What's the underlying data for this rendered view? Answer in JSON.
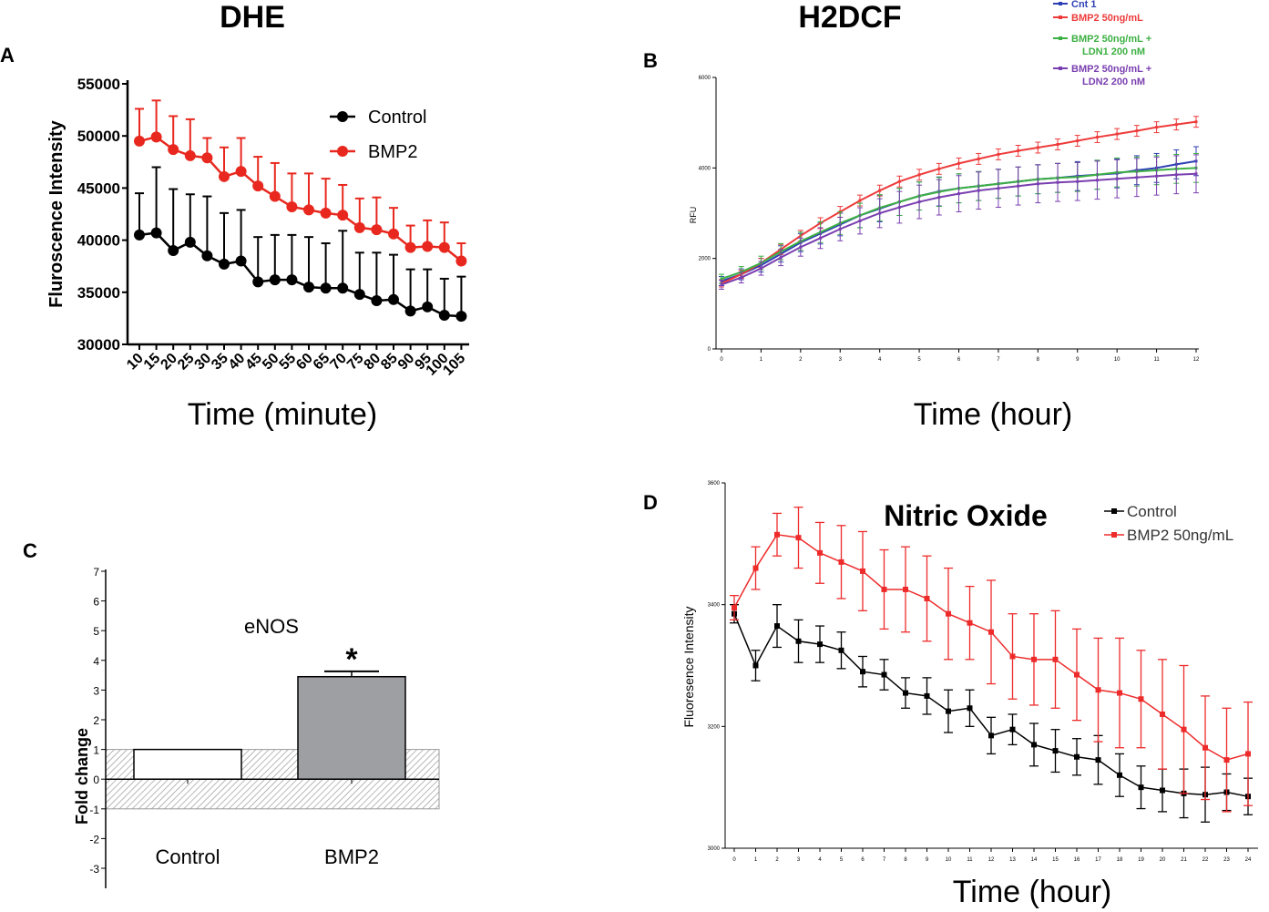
{
  "chart_data": [
    {
      "panel": "A",
      "type": "line",
      "title": "DHE",
      "xlabel": "Time (minute)",
      "ylabel": "Fluroscence Intensity",
      "ylim": [
        30000,
        55000
      ],
      "yticks": [
        30000,
        35000,
        40000,
        45000,
        50000,
        55000
      ],
      "categories": [
        "10",
        "15",
        "20",
        "25",
        "30",
        "35",
        "40",
        "45",
        "50",
        "55",
        "60",
        "65",
        "70",
        "75",
        "80",
        "85",
        "90",
        "95",
        "100",
        "105"
      ],
      "legend_position": "top-right",
      "series": [
        {
          "name": "Control",
          "color": "#000000",
          "values": [
            40500,
            40700,
            39000,
            39800,
            38500,
            37700,
            38000,
            36000,
            36200,
            36200,
            35500,
            35400,
            35400,
            34800,
            34200,
            34300,
            33200,
            33600,
            32800,
            32700
          ],
          "errors": [
            4000,
            6300,
            5900,
            4600,
            5700,
            4900,
            4900,
            4300,
            4300,
            4300,
            4800,
            4300,
            5500,
            4000,
            4600,
            4300,
            4000,
            3600,
            3500,
            3800
          ]
        },
        {
          "name": "BMP2",
          "color": "#e8281e",
          "values": [
            49500,
            49900,
            48700,
            48100,
            47900,
            46100,
            46600,
            45200,
            44200,
            43200,
            42900,
            42600,
            42400,
            41200,
            41000,
            40600,
            39300,
            39400,
            39300,
            38000
          ],
          "errors": [
            3100,
            3500,
            3200,
            3500,
            1900,
            2800,
            3200,
            2800,
            3200,
            3200,
            3500,
            3300,
            2900,
            2800,
            3100,
            2500,
            2100,
            2500,
            2400,
            1700
          ]
        }
      ]
    },
    {
      "panel": "B",
      "type": "line",
      "title": "H2DCF",
      "xlabel": "Time (hour)",
      "ylabel": "RFU",
      "ylim": [
        0,
        6000
      ],
      "yticks": [
        0,
        2000,
        4000,
        6000
      ],
      "xlim": [
        0,
        12
      ],
      "xticks": [
        "0",
        "1",
        "2",
        "3",
        "4",
        "5",
        "6",
        "7",
        "8",
        "9",
        "10",
        "11",
        "12"
      ],
      "legend_position": "top",
      "x": [
        0,
        0.5,
        1,
        1.5,
        2,
        2.5,
        3,
        3.5,
        4,
        4.5,
        5,
        5.5,
        6,
        6.5,
        7,
        7.5,
        8,
        8.5,
        9,
        9.5,
        10,
        10.5,
        11,
        11.5,
        12
      ],
      "series": [
        {
          "name": "Cnt 1",
          "color": "#2d3fb5",
          "values": [
            1500,
            1650,
            1850,
            2100,
            2350,
            2550,
            2750,
            2950,
            3100,
            3250,
            3380,
            3480,
            3550,
            3600,
            3650,
            3700,
            3750,
            3780,
            3820,
            3850,
            3880,
            3950,
            4000,
            4080,
            4150
          ],
          "errors": [
            100,
            120,
            150,
            180,
            200,
            230,
            250,
            270,
            290,
            300,
            310,
            320,
            320,
            320,
            320,
            320,
            320,
            320,
            320,
            320,
            320,
            320,
            320,
            320,
            320
          ]
        },
        {
          "name": "BMP2 50ng/mL",
          "color": "#ee3b3b",
          "values": [
            1450,
            1650,
            1900,
            2200,
            2500,
            2780,
            3030,
            3280,
            3500,
            3700,
            3850,
            3980,
            4100,
            4200,
            4300,
            4380,
            4450,
            4520,
            4600,
            4680,
            4750,
            4820,
            4900,
            4960,
            5020
          ],
          "errors": [
            80,
            90,
            100,
            110,
            120,
            120,
            120,
            120,
            120,
            120,
            120,
            120,
            120,
            120,
            120,
            120,
            120,
            120,
            120,
            120,
            120,
            120,
            120,
            120,
            120
          ]
        },
        {
          "name": "BMP2 50ng/mL + LDN1 200 nM",
          "color": "#3cb043",
          "values": [
            1550,
            1700,
            1900,
            2150,
            2380,
            2580,
            2780,
            2950,
            3120,
            3250,
            3380,
            3470,
            3550,
            3600,
            3650,
            3700,
            3750,
            3780,
            3800,
            3850,
            3900,
            3920,
            3950,
            3980,
            4000
          ],
          "errors": [
            100,
            120,
            150,
            180,
            200,
            230,
            250,
            270,
            290,
            300,
            310,
            320,
            320,
            320,
            320,
            320,
            320,
            320,
            320,
            320,
            320,
            320,
            320,
            320,
            320
          ]
        },
        {
          "name": "BMP2 50ng/mL + LDN2 200 nM",
          "color": "#7a3fb0",
          "values": [
            1420,
            1580,
            1780,
            2020,
            2250,
            2450,
            2650,
            2830,
            3000,
            3130,
            3250,
            3350,
            3430,
            3500,
            3550,
            3600,
            3650,
            3680,
            3700,
            3730,
            3760,
            3790,
            3820,
            3850,
            3870
          ],
          "errors": [
            100,
            120,
            150,
            180,
            200,
            230,
            260,
            290,
            320,
            350,
            370,
            390,
            400,
            410,
            420,
            420,
            420,
            420,
            420,
            420,
            420,
            420,
            420,
            420,
            420
          ]
        }
      ]
    },
    {
      "panel": "C",
      "type": "bar",
      "title": "eNOS",
      "xlabel": "",
      "ylabel": "Fold change",
      "ylim": [
        -3,
        7
      ],
      "yticks": [
        "7",
        "6",
        "5",
        "4",
        "3",
        "2",
        "1",
        "0",
        "-1",
        "-2",
        "-3"
      ],
      "categories": [
        "Control",
        "BMP2"
      ],
      "values": [
        1.0,
        3.45
      ],
      "errors": [
        0,
        0.18
      ],
      "significance": [
        "",
        "*"
      ],
      "band": [
        -1,
        1
      ]
    },
    {
      "panel": "D",
      "type": "line",
      "title": "Nitric Oxide",
      "xlabel": "Time (hour)",
      "ylabel": "Fluoresence Intensity",
      "ylim": [
        3000,
        3600
      ],
      "yticks": [
        "3000",
        "3200",
        "3400",
        "3600"
      ],
      "xticks": [
        "0",
        "1",
        "2",
        "3",
        "4",
        "5",
        "6",
        "7",
        "8",
        "9",
        "10",
        "11",
        "12",
        "13",
        "14",
        "15",
        "16",
        "17",
        "18",
        "19",
        "20",
        "21",
        "22",
        "23",
        "24"
      ],
      "legend_position": "top-right",
      "series": [
        {
          "name": "Control",
          "color": "#000000",
          "values": [
            3385,
            3300,
            3365,
            3340,
            3335,
            3325,
            3290,
            3285,
            3255,
            3250,
            3225,
            3230,
            3185,
            3195,
            3170,
            3160,
            3150,
            3145,
            3120,
            3100,
            3095,
            3090,
            3088,
            3092,
            3085
          ],
          "errors": [
            15,
            25,
            35,
            35,
            30,
            30,
            25,
            25,
            25,
            30,
            35,
            30,
            30,
            25,
            35,
            35,
            30,
            40,
            35,
            35,
            35,
            40,
            45,
            30,
            30
          ]
        },
        {
          "name": "BMP2 50ng/mL",
          "color": "#ee2b2b",
          "values": [
            3395,
            3460,
            3515,
            3510,
            3485,
            3470,
            3455,
            3425,
            3425,
            3410,
            3385,
            3370,
            3355,
            3315,
            3310,
            3310,
            3285,
            3260,
            3255,
            3245,
            3220,
            3195,
            3165,
            3145,
            3155
          ],
          "errors": [
            20,
            35,
            35,
            50,
            50,
            60,
            65,
            65,
            70,
            70,
            75,
            60,
            85,
            70,
            75,
            80,
            75,
            85,
            90,
            80,
            90,
            105,
            85,
            85,
            85
          ]
        }
      ]
    }
  ],
  "panel_labels": {
    "A": "A",
    "B": "B",
    "C": "C",
    "D": "D"
  }
}
